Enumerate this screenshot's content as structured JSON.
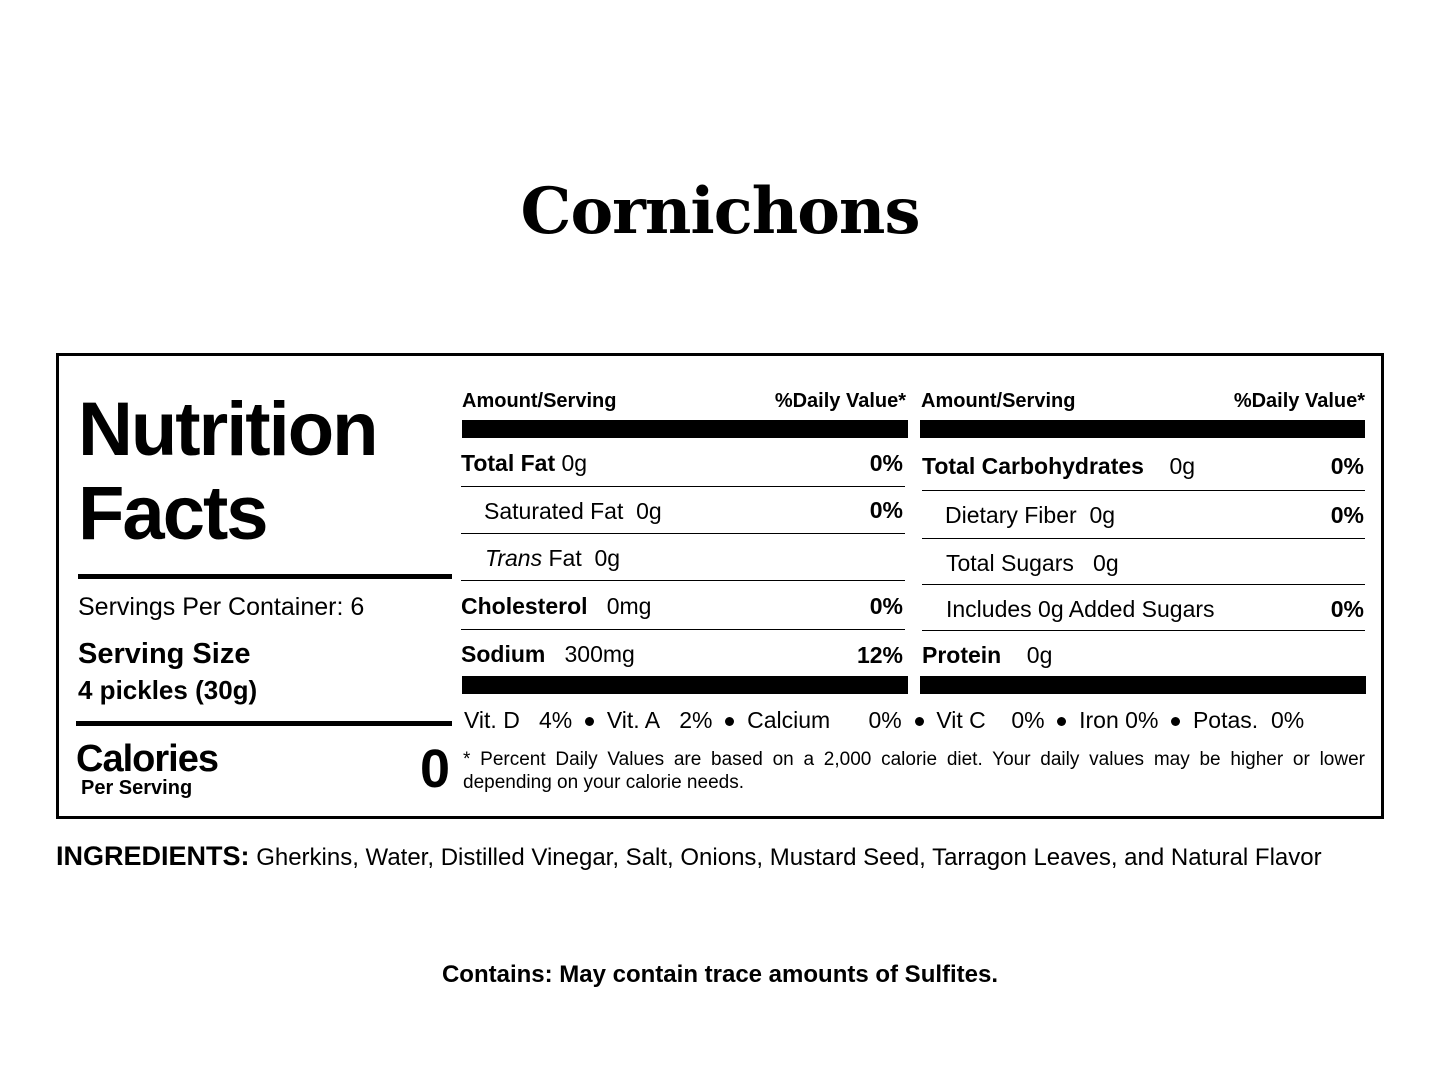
{
  "product_title": "Cornichons",
  "label": {
    "heading_line1": "Nutrition",
    "heading_line2": "Facts",
    "servings_per_container": "Servings Per Container: 6",
    "serving_size_label": "Serving Size",
    "serving_size_value": "4 pickles (30g)",
    "calories_label": "Calories",
    "calories_sub": "Per Serving",
    "calories_value": "0"
  },
  "columns": [
    {
      "header_amount": "Amount/Serving",
      "header_dv": "%Daily Value*",
      "rows": [
        {
          "name": "Total Fat",
          "amount": "0g",
          "dv": "0%"
        },
        {
          "name": "Saturated Fat",
          "amount": "0g",
          "dv": "0%"
        },
        {
          "name_italic": "Trans",
          "name": "Fat",
          "amount": "0g",
          "dv": ""
        },
        {
          "name": "Cholesterol",
          "amount": "0mg",
          "dv": "0%"
        },
        {
          "name": "Sodium",
          "amount": "300mg",
          "dv": "12%"
        }
      ]
    },
    {
      "header_amount": "Amount/Serving",
      "header_dv": "%Daily Value*",
      "rows": [
        {
          "name": "Total Carbohydrates",
          "amount": "0g",
          "dv": "0%"
        },
        {
          "name": "Dietary Fiber",
          "amount": "0g",
          "dv": "0%"
        },
        {
          "name": "Total Sugars",
          "amount": "0g",
          "dv": ""
        },
        {
          "name": "Includes 0g Added Sugars",
          "amount": "",
          "dv": "0%"
        },
        {
          "name": "Protein",
          "amount": "0g",
          "dv": ""
        }
      ]
    }
  ],
  "vitamins": [
    {
      "name": "Vit. D",
      "value": "4%"
    },
    {
      "name": "Vit. A",
      "value": "2%"
    },
    {
      "name": "Calcium",
      "value": "0%"
    },
    {
      "name": "Vit C",
      "value": "0%"
    },
    {
      "name": "Iron",
      "value": "0%"
    },
    {
      "name": "Potas.",
      "value": "0%"
    }
  ],
  "footnote": "* Percent Daily Values are based on a 2,000 calorie diet. Your daily values may be higher or lower depending on your calorie needs.",
  "ingredients": {
    "label": "INGREDIENTS:",
    "text": "Gherkins, Water, Distilled Vinegar, Salt, Onions, Mustard Seed, Tarragon Leaves, and Natural Flavor"
  },
  "allergen": "Contains: May contain trace amounts of Sulfites."
}
